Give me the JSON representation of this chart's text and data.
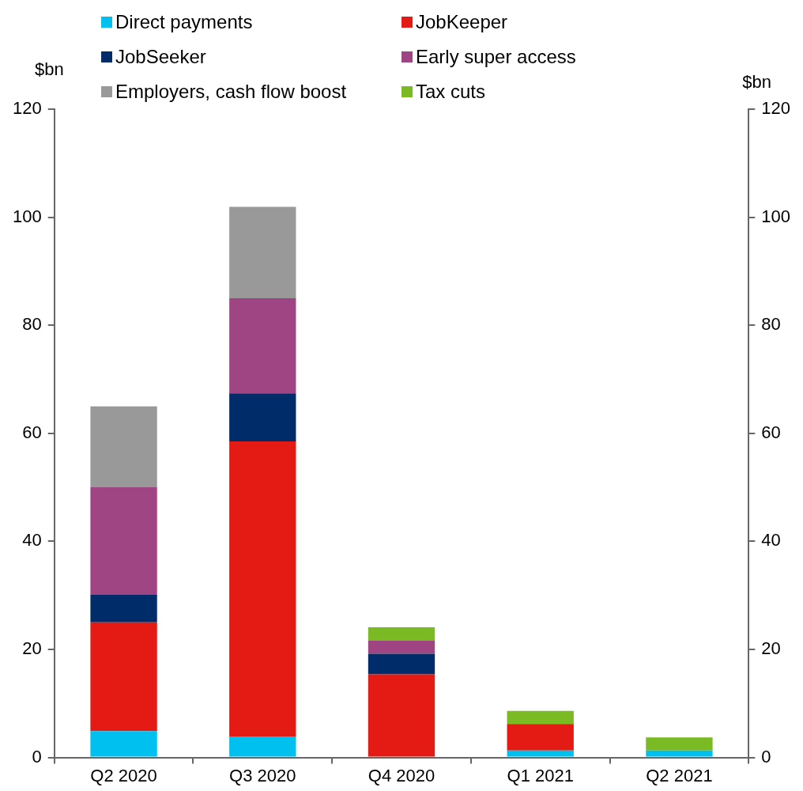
{
  "chart_data": {
    "type": "bar",
    "stacked": true,
    "ylabel": "$bn",
    "y2label": "$bn",
    "categories": [
      "Q2 2020",
      "Q3 2020",
      "Q4 2020",
      "Q1 2021",
      "Q2 2021"
    ],
    "series": [
      {
        "name": "Direct payments",
        "color": "#00c0f0",
        "values": [
          4.9,
          3.9,
          0,
          1.3,
          1.3
        ]
      },
      {
        "name": "JobKeeper",
        "color": "#e31b14",
        "values": [
          20.1,
          54.6,
          15.4,
          4.9,
          0
        ]
      },
      {
        "name": "JobSeeker",
        "color": "#002d6a",
        "values": [
          5.1,
          8.9,
          3.8,
          0,
          0
        ]
      },
      {
        "name": "Early super access",
        "color": "#a04583",
        "values": [
          19.9,
          17.6,
          2.5,
          0,
          0
        ]
      },
      {
        "name": "Employers, cash flow boost",
        "color": "#999999",
        "values": [
          15,
          16.9,
          0,
          0,
          0
        ]
      },
      {
        "name": "Tax cuts",
        "color": "#7aba22",
        "values": [
          0,
          0,
          2.4,
          2.4,
          2.4
        ]
      }
    ],
    "ylim": [
      0,
      120
    ],
    "yticks": [
      0,
      20,
      40,
      60,
      80,
      100,
      120
    ],
    "y2lim": [
      0,
      120
    ],
    "y2ticks": [
      0,
      20,
      40,
      60,
      80,
      100,
      120
    ],
    "grid": false,
    "legend": "top"
  }
}
